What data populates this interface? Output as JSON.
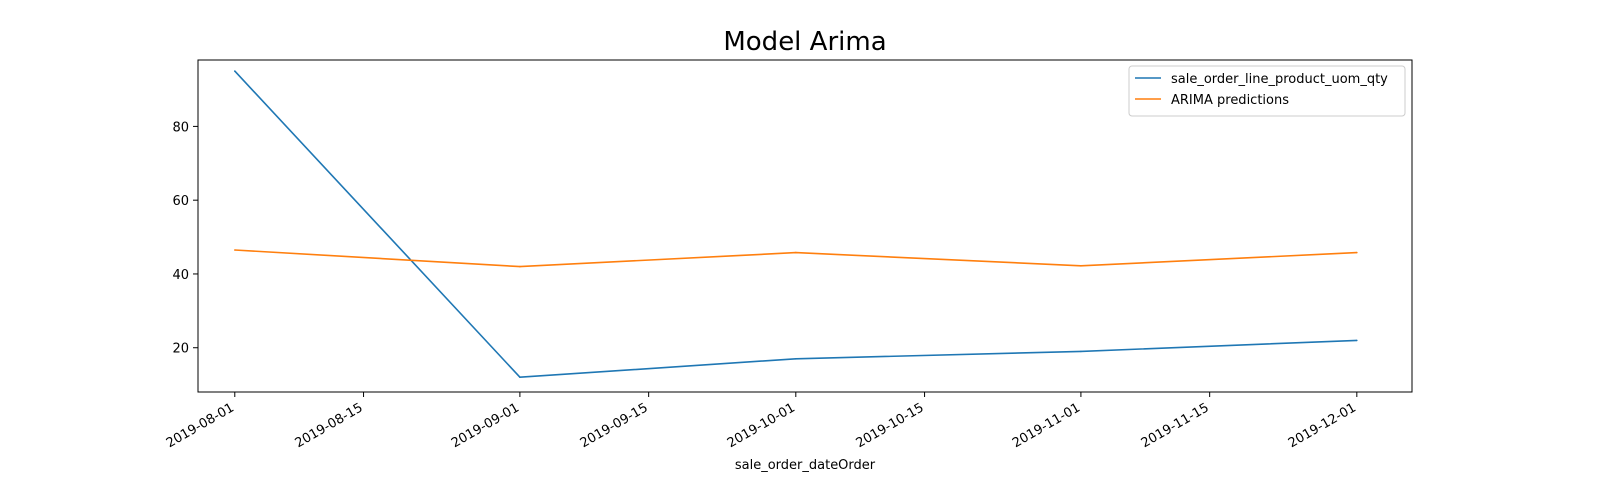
{
  "chart_data": {
    "type": "line",
    "title": "Model Arima",
    "xlabel": "sale_order_dateOrder",
    "ylabel": "",
    "x_type": "date",
    "xlim": [
      "2019-07-28",
      "2019-12-07"
    ],
    "ylim": [
      8,
      98
    ],
    "x_ticks": [
      "2019-08-01",
      "2019-08-15",
      "2019-09-01",
      "2019-09-15",
      "2019-10-01",
      "2019-10-15",
      "2019-11-01",
      "2019-11-15",
      "2019-12-01"
    ],
    "y_ticks": [
      20,
      40,
      60,
      80
    ],
    "grid": false,
    "legend_position": "upper right",
    "series": [
      {
        "name": "sale_order_line_product_uom_qty",
        "color": "#1f77b4",
        "x": [
          "2019-08-01",
          "2019-09-01",
          "2019-10-01",
          "2019-11-01",
          "2019-12-01"
        ],
        "y": [
          95,
          12,
          17,
          19,
          22
        ]
      },
      {
        "name": "ARIMA predictions",
        "color": "#ff7f0e",
        "x": [
          "2019-08-01",
          "2019-09-01",
          "2019-10-01",
          "2019-11-01",
          "2019-12-01"
        ],
        "y": [
          46.5,
          42,
          45.8,
          42.2,
          45.8
        ]
      }
    ]
  }
}
